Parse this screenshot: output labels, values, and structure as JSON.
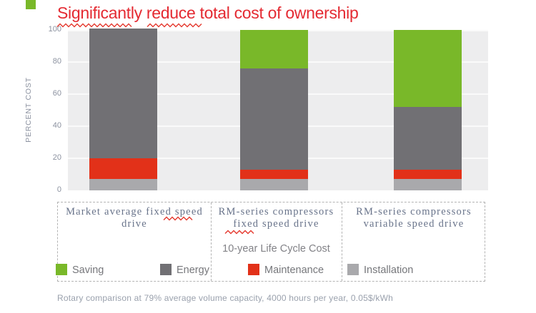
{
  "accent_color": "#79b829",
  "title": {
    "text": "Significantly reduce total cost of ownership",
    "color": "#e42a32"
  },
  "chart_data": {
    "type": "bar",
    "subtype": "stacked-percent",
    "title": "Significantly reduce total cost of ownership",
    "ylabel": "PERCENT COST",
    "ylim": [
      0,
      100
    ],
    "yticks": [
      0,
      20,
      40,
      60,
      80,
      100
    ],
    "ytick_labels": [
      "100",
      "80",
      "60",
      "40",
      "20",
      "0"
    ],
    "grid": "horizontal-white-on-gray",
    "plot_background": "#ededee",
    "categories": [
      "Market average fixed speed drive",
      "RM-series compressors fixed speed drive",
      "RM-series compressors variable speed drive"
    ],
    "series": [
      {
        "name": "Installation",
        "color": "#a9a9ac",
        "values": [
          7,
          7,
          7
        ]
      },
      {
        "name": "Maintenance",
        "color": "#e23119",
        "values": [
          13,
          6,
          6
        ]
      },
      {
        "name": "Energy",
        "color": "#717074",
        "values": [
          81,
          63,
          39
        ]
      },
      {
        "name": "Saving",
        "color": "#79b829",
        "values": [
          0,
          24,
          48
        ]
      }
    ],
    "stack_order_bottom_to_top": [
      "Installation",
      "Maintenance",
      "Energy",
      "Saving"
    ],
    "legend_position": "bottom"
  },
  "panel": {
    "center_note": "10-year Life Cycle Cost",
    "legend": [
      {
        "label": "Saving",
        "color": "#79b829"
      },
      {
        "label": "Energy",
        "color": "#717074"
      },
      {
        "label": "Maintenance",
        "color": "#e23119"
      },
      {
        "label": "Installation",
        "color": "#a9a9ac"
      }
    ]
  },
  "footnote": "Rotary comparison at 79% average volume capacity, 4000 hours per year, 0.05$/kWh"
}
